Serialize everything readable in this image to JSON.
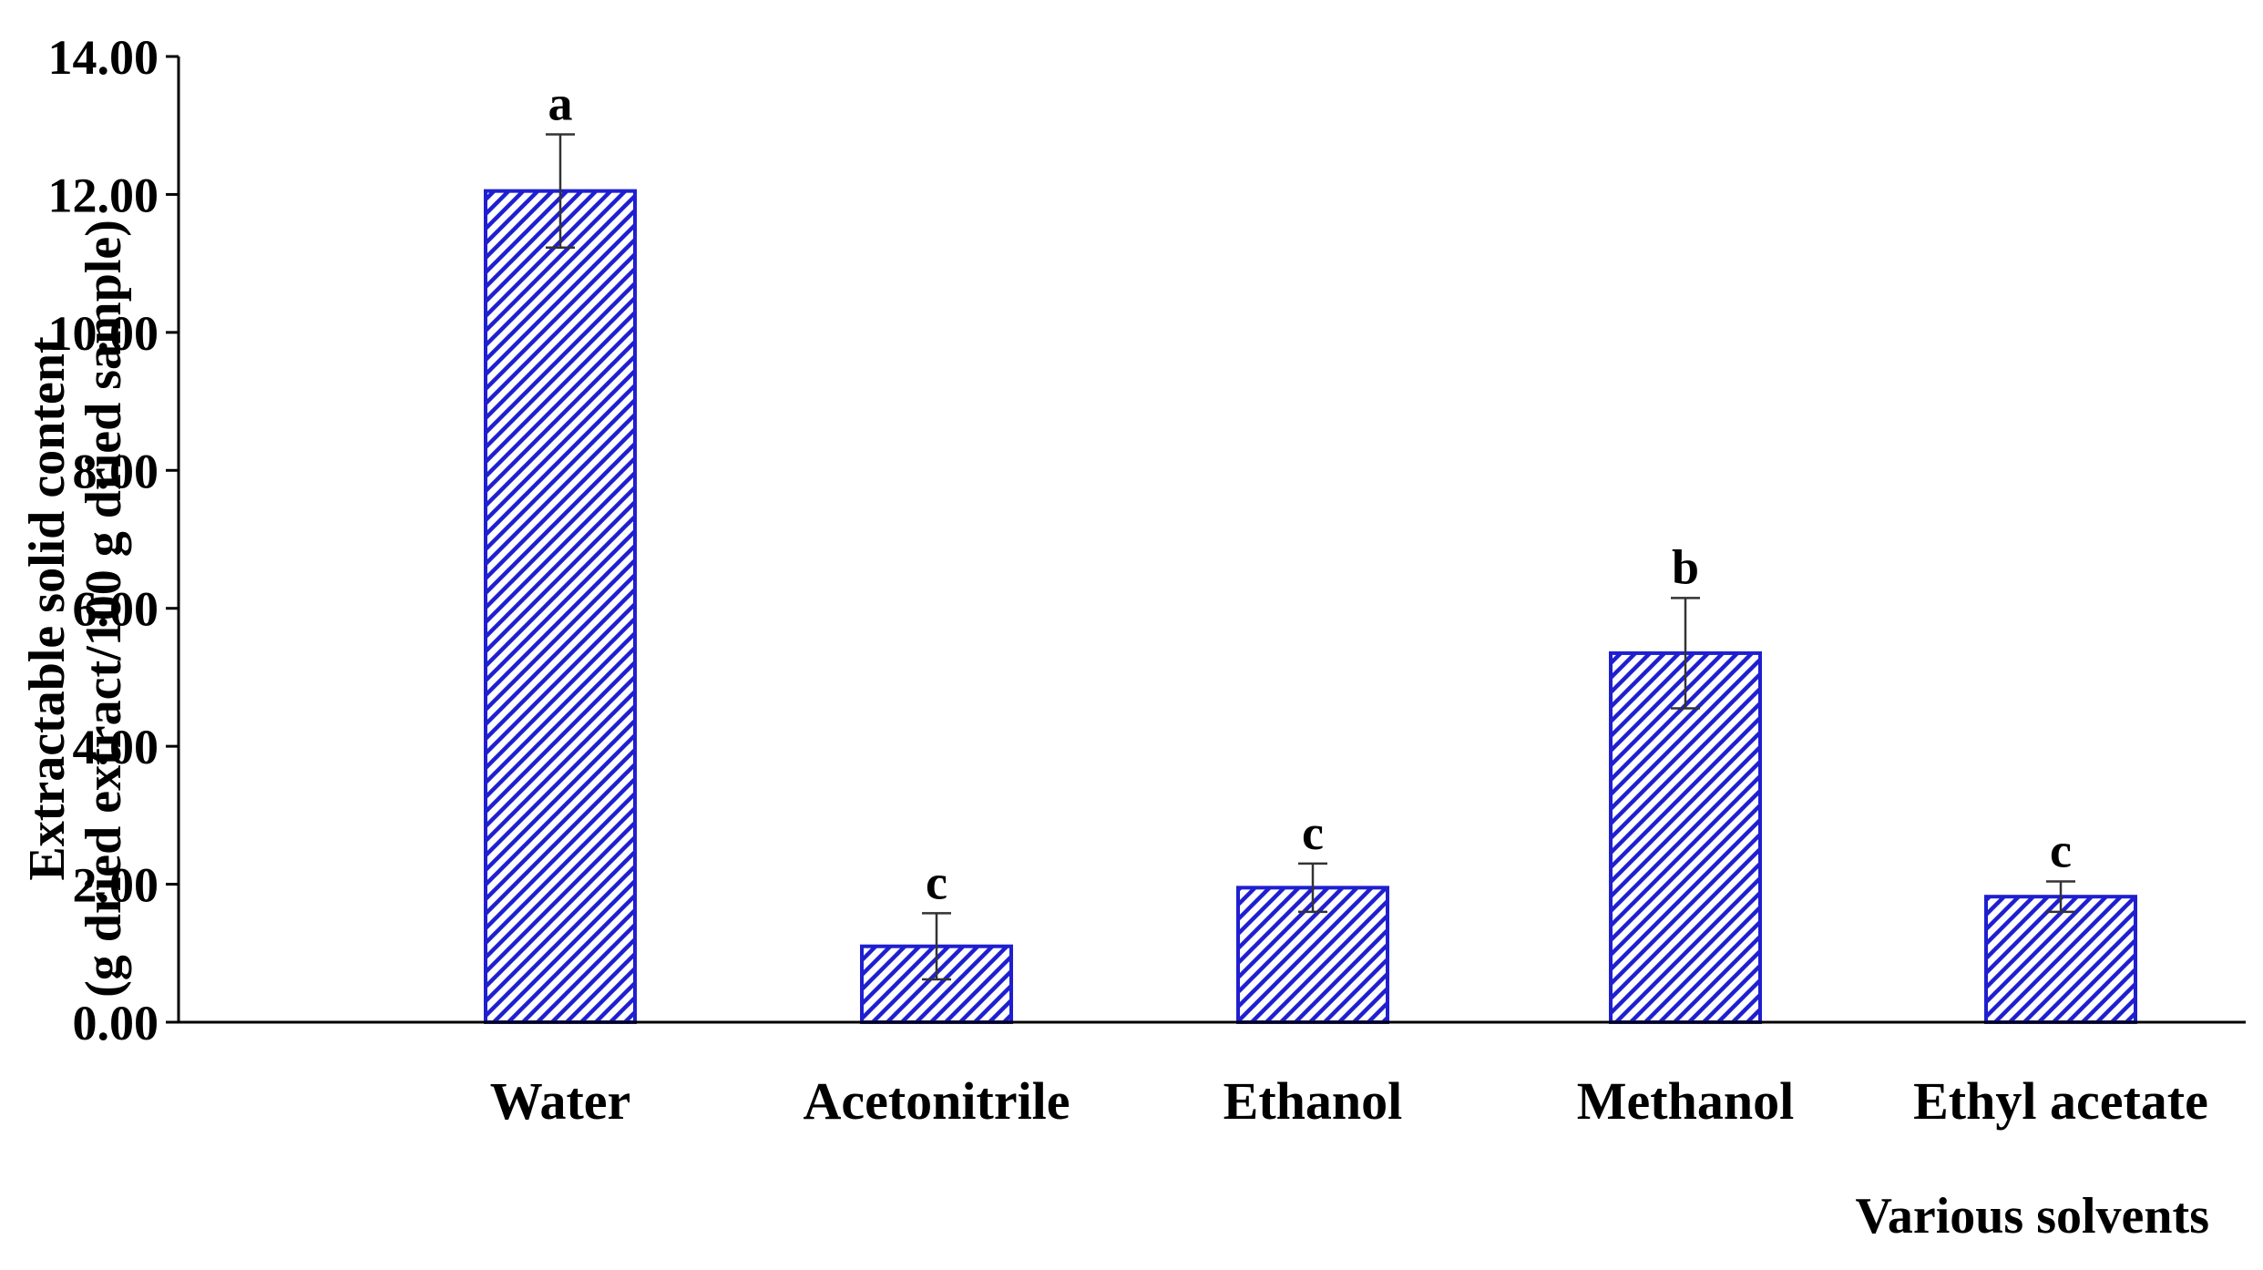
{
  "chart_data": {
    "type": "bar",
    "categories": [
      "Water",
      "Acetonitrile",
      "Ethanol",
      "Methanol",
      "Ethyl acetate"
    ],
    "values": [
      12.05,
      1.1,
      1.95,
      5.35,
      1.82
    ],
    "errors": [
      0.82,
      0.48,
      0.35,
      0.8,
      0.22
    ],
    "significance": [
      "a",
      "c",
      "c",
      "b",
      "c"
    ],
    "yticks": [
      "0.00",
      "2.00",
      "4.00",
      "6.00",
      "8.00",
      "10.00",
      "12.00",
      "14.00"
    ],
    "ylim": [
      0,
      14
    ],
    "ylabel_line1": "Extractable solid content",
    "ylabel_line2": "(g dried extract/100 g dried sample)",
    "xlabel": "Various solvents",
    "bar_color": "#1f1fd0",
    "grid": false
  }
}
